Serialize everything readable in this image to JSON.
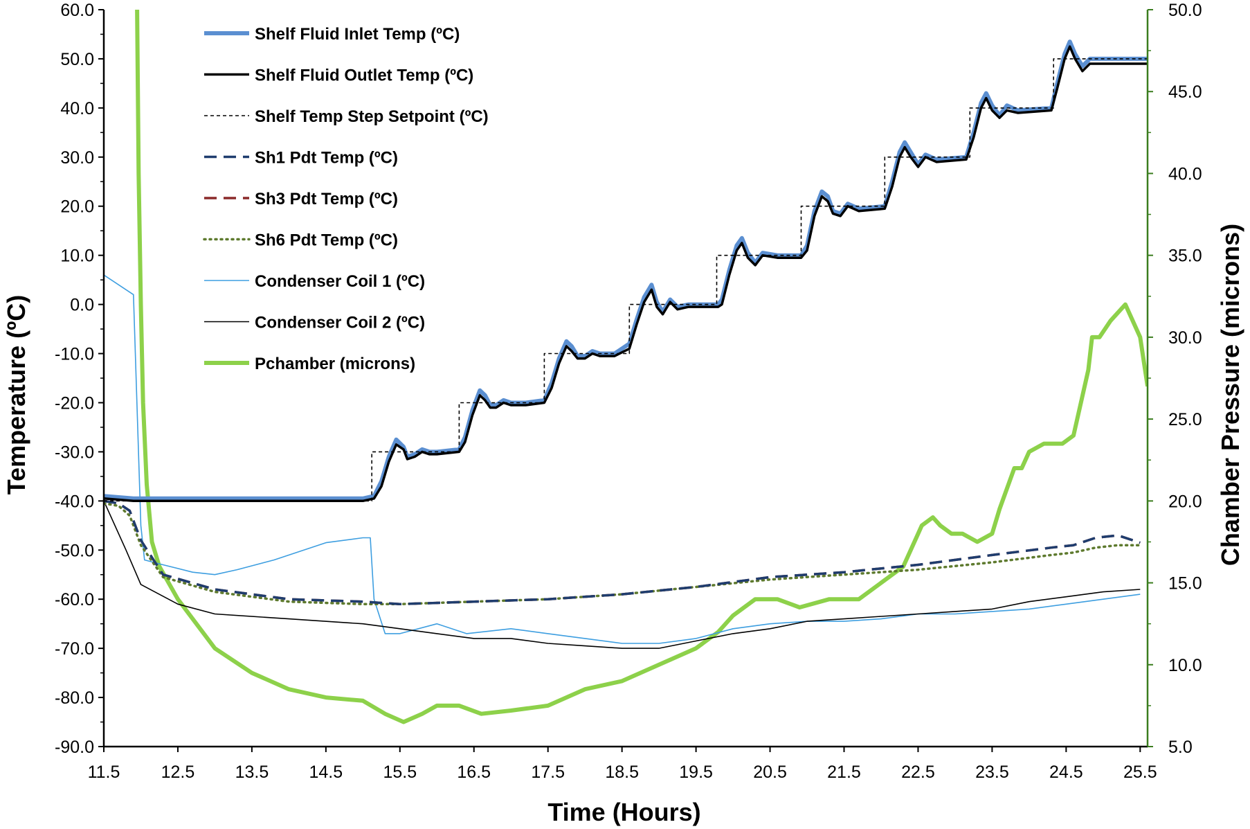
{
  "chart_data": {
    "type": "line",
    "xlabel": "Time (Hours)",
    "ylabel": "Temperature (ºC)",
    "y2label": "Chamber Pressure  (microns)",
    "xlim": [
      11.5,
      25.6
    ],
    "ylim": [
      -90,
      60
    ],
    "y2lim": [
      5,
      50
    ],
    "x_ticks": [
      11.5,
      12.5,
      13.5,
      14.5,
      15.5,
      16.5,
      17.5,
      18.5,
      19.5,
      20.5,
      21.5,
      22.5,
      23.5,
      24.5,
      25.5
    ],
    "x_tick_labels": [
      "11.5",
      "12.5",
      "13.5",
      "14.5",
      "15.5",
      "16.5",
      "17.5",
      "18.5",
      "19.5",
      "20.5",
      "21.5",
      "22.5",
      "23.5",
      "24.5",
      "25.5"
    ],
    "y_ticks": [
      60,
      50,
      40,
      30,
      20,
      10,
      0,
      -10,
      -20,
      -30,
      -40,
      -50,
      -60,
      -70,
      -80,
      -90
    ],
    "y_tick_labels": [
      "60.0",
      "50.0",
      "40.0",
      "30.0",
      "20.0",
      "10.0",
      "0.0",
      "-10.0",
      "-20.0",
      "-30.0",
      "-40.0",
      "-50.0",
      "-60.0",
      "-70.0",
      "-80.0",
      "-90.0"
    ],
    "y2_ticks": [
      50,
      45,
      40,
      35,
      30,
      25,
      20,
      15,
      10,
      5
    ],
    "y2_tick_labels": [
      "50.0",
      "45.0",
      "40.0",
      "35.0",
      "30.0",
      "25.0",
      "20.0",
      "15.0",
      "10.0",
      "5.0"
    ],
    "legend_position": "top-left",
    "grid": false,
    "series": [
      {
        "name": "Shelf Fluid Inlet Temp (ºC)",
        "axis": "left",
        "color": "#5b8fd1",
        "style": "solid-thick",
        "x": [
          11.5,
          11.9,
          12.3,
          13.0,
          14.0,
          15.0,
          15.15,
          15.25,
          15.35,
          15.45,
          15.55,
          15.6,
          15.7,
          15.8,
          15.9,
          16.0,
          16.3,
          16.38,
          16.48,
          16.58,
          16.65,
          16.72,
          16.8,
          16.9,
          17.0,
          17.2,
          17.45,
          17.55,
          17.65,
          17.75,
          17.82,
          17.9,
          18.0,
          18.1,
          18.2,
          18.4,
          18.6,
          18.7,
          18.8,
          18.9,
          18.97,
          19.05,
          19.15,
          19.25,
          19.4,
          19.8,
          19.85,
          19.95,
          20.05,
          20.12,
          20.2,
          20.3,
          20.4,
          20.6,
          20.92,
          21.0,
          21.1,
          21.2,
          21.28,
          21.35,
          21.45,
          21.55,
          21.7,
          22.05,
          22.15,
          22.25,
          22.32,
          22.4,
          22.5,
          22.6,
          22.75,
          23.15,
          23.25,
          23.35,
          23.42,
          23.5,
          23.6,
          23.7,
          23.85,
          24.3,
          24.38,
          24.48,
          24.55,
          24.62,
          24.72,
          24.82,
          25.0,
          25.6
        ],
        "y": [
          -39,
          -39.5,
          -39.5,
          -39.5,
          -39.5,
          -39.5,
          -39,
          -36,
          -31,
          -27.5,
          -29,
          -31,
          -30.5,
          -29.5,
          -30,
          -30,
          -29.5,
          -27,
          -21.5,
          -17.5,
          -18.5,
          -20.5,
          -20.5,
          -19.5,
          -20,
          -20,
          -19.5,
          -16,
          -11,
          -7.5,
          -8.5,
          -10.5,
          -10.5,
          -9.5,
          -10,
          -10,
          -8,
          -3,
          1.5,
          4,
          0.5,
          -1.5,
          1,
          -0.5,
          0,
          0,
          1,
          7,
          12,
          13.5,
          10.5,
          8.5,
          10.5,
          10,
          10,
          12,
          19,
          23,
          22,
          19,
          18.5,
          20.5,
          19.5,
          20,
          25,
          31,
          33,
          31,
          28.5,
          30.5,
          29.5,
          30,
          35,
          41,
          43,
          40.5,
          38.5,
          40.5,
          39.5,
          40,
          45,
          51,
          53.5,
          51,
          48.5,
          50,
          50,
          50
        ]
      },
      {
        "name": "Shelf Fluid Outlet Temp (ºC)",
        "axis": "left",
        "color": "#000000",
        "style": "solid-medium",
        "x": [
          11.5,
          11.9,
          12.3,
          13.0,
          14.0,
          15.0,
          15.15,
          15.25,
          15.35,
          15.45,
          15.55,
          15.6,
          15.7,
          15.8,
          15.9,
          16.0,
          16.3,
          16.38,
          16.48,
          16.58,
          16.65,
          16.72,
          16.8,
          16.9,
          17.0,
          17.2,
          17.45,
          17.55,
          17.65,
          17.75,
          17.82,
          17.9,
          18.0,
          18.1,
          18.2,
          18.4,
          18.6,
          18.7,
          18.8,
          18.9,
          18.97,
          19.05,
          19.15,
          19.25,
          19.4,
          19.8,
          19.85,
          19.95,
          20.05,
          20.12,
          20.2,
          20.3,
          20.4,
          20.6,
          20.92,
          21.0,
          21.1,
          21.2,
          21.28,
          21.35,
          21.45,
          21.55,
          21.7,
          22.05,
          22.15,
          22.25,
          22.32,
          22.4,
          22.5,
          22.6,
          22.75,
          23.15,
          23.25,
          23.35,
          23.42,
          23.5,
          23.6,
          23.7,
          23.85,
          24.3,
          24.38,
          24.48,
          24.55,
          24.62,
          24.72,
          24.82,
          25.0,
          25.6
        ],
        "y": [
          -39.5,
          -40,
          -40,
          -40,
          -40,
          -40,
          -39.5,
          -37,
          -32,
          -28.5,
          -29.5,
          -31.5,
          -31,
          -30,
          -30.5,
          -30.5,
          -30,
          -28,
          -22.5,
          -18.5,
          -19.5,
          -21,
          -21,
          -20,
          -20.5,
          -20.5,
          -20,
          -17,
          -12,
          -8.5,
          -9.5,
          -11,
          -11,
          -10,
          -10.5,
          -10.5,
          -9,
          -4,
          0.5,
          3,
          -0.5,
          -2,
          0.5,
          -1,
          -0.5,
          -0.5,
          0,
          6,
          11,
          12.5,
          9.5,
          8,
          10,
          9.5,
          9.5,
          11,
          18,
          22,
          21,
          18.5,
          18,
          20,
          19,
          19.5,
          24,
          30,
          32,
          30,
          28,
          30,
          29,
          29.5,
          34,
          40,
          42,
          39.5,
          38,
          39.5,
          39,
          39.5,
          44,
          50,
          52.5,
          50,
          47.5,
          49,
          49,
          49
        ]
      },
      {
        "name": "Shelf Temp Step Setpoint (ºC)",
        "axis": "left",
        "color": "#000000",
        "style": "dashed",
        "x": [
          11.5,
          15.12,
          15.12,
          16.3,
          16.3,
          17.45,
          17.45,
          18.6,
          18.6,
          19.78,
          19.78,
          20.92,
          20.92,
          22.05,
          22.05,
          23.2,
          23.2,
          24.33,
          24.33,
          25.6
        ],
        "y": [
          -40,
          -40,
          -30,
          -30,
          -20,
          -20,
          -10,
          -10,
          0,
          0,
          10,
          10,
          20,
          20,
          30,
          30,
          40,
          40,
          50,
          50
        ]
      },
      {
        "name": "Sh1 Pdt Temp (ºC)",
        "axis": "left",
        "color": "#1f3d6e",
        "style": "long-dash",
        "x": [
          11.5,
          11.7,
          11.85,
          12.0,
          12.3,
          13.0,
          14.0,
          15.0,
          15.5,
          16.5,
          17.5,
          18.5,
          19.5,
          20.5,
          21.5,
          22.5,
          23.5,
          24.3,
          24.6,
          24.9,
          25.2,
          25.5
        ],
        "y": [
          -40,
          -40.5,
          -42,
          -48,
          -55,
          -58,
          -60,
          -60.5,
          -61,
          -60.5,
          -60,
          -59,
          -57.5,
          -55.5,
          -54.5,
          -53,
          -51,
          -49.5,
          -49,
          -47.5,
          -47,
          -48.5
        ]
      },
      {
        "name": "Sh3 Pdt Temp (ºC)",
        "axis": "left",
        "color": "#8b2a2a",
        "style": "long-dash",
        "x": [
          11.5,
          11.7,
          11.85,
          12.0,
          12.3,
          13.0,
          14.0,
          15.0,
          15.5,
          16.5,
          17.5,
          18.5,
          19.5,
          20.5,
          21.5,
          22.5,
          23.5,
          24.3,
          24.6,
          24.9,
          25.2,
          25.5
        ],
        "y": [
          -40,
          -40.5,
          -42,
          -48,
          -55,
          -58,
          -60,
          -60.5,
          -61,
          -60.5,
          -60,
          -59,
          -57.5,
          -55.5,
          -54.5,
          -53,
          -51,
          -49.5,
          -49,
          -47.5,
          -47,
          -48.5
        ]
      },
      {
        "name": "Sh6 Pdt Temp (ºC)",
        "axis": "left",
        "color": "#5e7a2e",
        "style": "dotted",
        "x": [
          11.5,
          11.7,
          11.85,
          12.0,
          12.3,
          13.0,
          14.0,
          15.0,
          15.5,
          16.5,
          17.5,
          18.5,
          19.5,
          20.5,
          21.5,
          22.5,
          23.5,
          24.3,
          24.6,
          24.9,
          25.2,
          25.5
        ],
        "y": [
          -40.5,
          -41,
          -43,
          -49,
          -55.5,
          -58.5,
          -60.5,
          -61,
          -61,
          -60.5,
          -60,
          -59,
          -57.5,
          -56,
          -55,
          -54,
          -52.5,
          -51,
          -50.5,
          -49.5,
          -49,
          -49
        ]
      },
      {
        "name": "Condenser Coil 1 (ºC)",
        "axis": "left",
        "color": "#3d9ee0",
        "style": "solid-thin",
        "x": [
          11.5,
          11.9,
          12.0,
          12.05,
          12.3,
          12.7,
          13.0,
          13.3,
          13.8,
          14.5,
          15.0,
          15.1,
          15.15,
          15.3,
          15.5,
          16.0,
          16.4,
          17.0,
          17.5,
          18.0,
          18.5,
          19.0,
          19.5,
          20.0,
          20.5,
          21.0,
          21.5,
          22.0,
          22.5,
          23.0,
          23.5,
          24.0,
          24.5,
          25.0,
          25.5
        ],
        "y": [
          6,
          2,
          -45,
          -52,
          -53,
          -54.5,
          -55,
          -54,
          -52,
          -48.5,
          -47.5,
          -47.5,
          -60,
          -67,
          -67,
          -65,
          -67,
          -66,
          -67,
          -68,
          -69,
          -69,
          -68,
          -66,
          -65,
          -64.5,
          -64.5,
          -64,
          -63,
          -63,
          -62.5,
          -62,
          -61,
          -60,
          -59
        ]
      },
      {
        "name": "Condenser Coil 2 (ºC)",
        "axis": "left",
        "color": "#000000",
        "style": "solid-thin",
        "x": [
          11.5,
          11.8,
          12.0,
          12.5,
          13.0,
          14.0,
          15.0,
          15.5,
          16.0,
          16.5,
          17.0,
          17.5,
          18.0,
          18.5,
          19.0,
          19.5,
          20.0,
          20.5,
          21.0,
          21.5,
          22.0,
          22.5,
          23.0,
          23.5,
          24.0,
          24.5,
          25.0,
          25.5
        ],
        "y": [
          -40,
          -50,
          -57,
          -61,
          -63,
          -64,
          -65,
          -66,
          -67,
          -68,
          -68,
          -69,
          -69.5,
          -70,
          -70,
          -68.5,
          -67,
          -66,
          -64.5,
          -64,
          -63.5,
          -63,
          -62.5,
          -62,
          -60.5,
          -59.5,
          -58.5,
          -58
        ]
      },
      {
        "name": "Pchamber (microns)",
        "axis": "right",
        "color": "#8dd14a",
        "style": "solid-thick",
        "x": [
          11.95,
          11.97,
          12.0,
          12.03,
          12.08,
          12.15,
          12.25,
          12.5,
          13.0,
          13.5,
          14.0,
          14.5,
          15.0,
          15.3,
          15.55,
          15.8,
          16.0,
          16.3,
          16.6,
          17.0,
          17.5,
          18.0,
          18.5,
          19.0,
          19.5,
          19.8,
          20.0,
          20.3,
          20.6,
          20.9,
          21.3,
          21.7,
          22.0,
          22.3,
          22.5,
          22.55,
          22.7,
          22.8,
          22.95,
          23.1,
          23.3,
          23.5,
          23.6,
          23.8,
          23.9,
          24.0,
          24.2,
          24.45,
          24.6,
          24.7,
          24.8,
          24.85,
          24.95,
          25.1,
          25.3,
          25.5,
          25.6
        ],
        "y": [
          50,
          40,
          32,
          26,
          21,
          17.5,
          16,
          14,
          11,
          9.5,
          8.5,
          8,
          7.8,
          7,
          6.5,
          7,
          7.5,
          7.5,
          7,
          7.2,
          7.5,
          8.5,
          9,
          10,
          11,
          12,
          13,
          14,
          14,
          13.5,
          14,
          14,
          15,
          16,
          18,
          18.5,
          19,
          18.5,
          18,
          18,
          17.5,
          18,
          19.5,
          22,
          22,
          23,
          23.5,
          23.5,
          24,
          26,
          28,
          30,
          30,
          31,
          32,
          30,
          27
        ]
      }
    ]
  }
}
